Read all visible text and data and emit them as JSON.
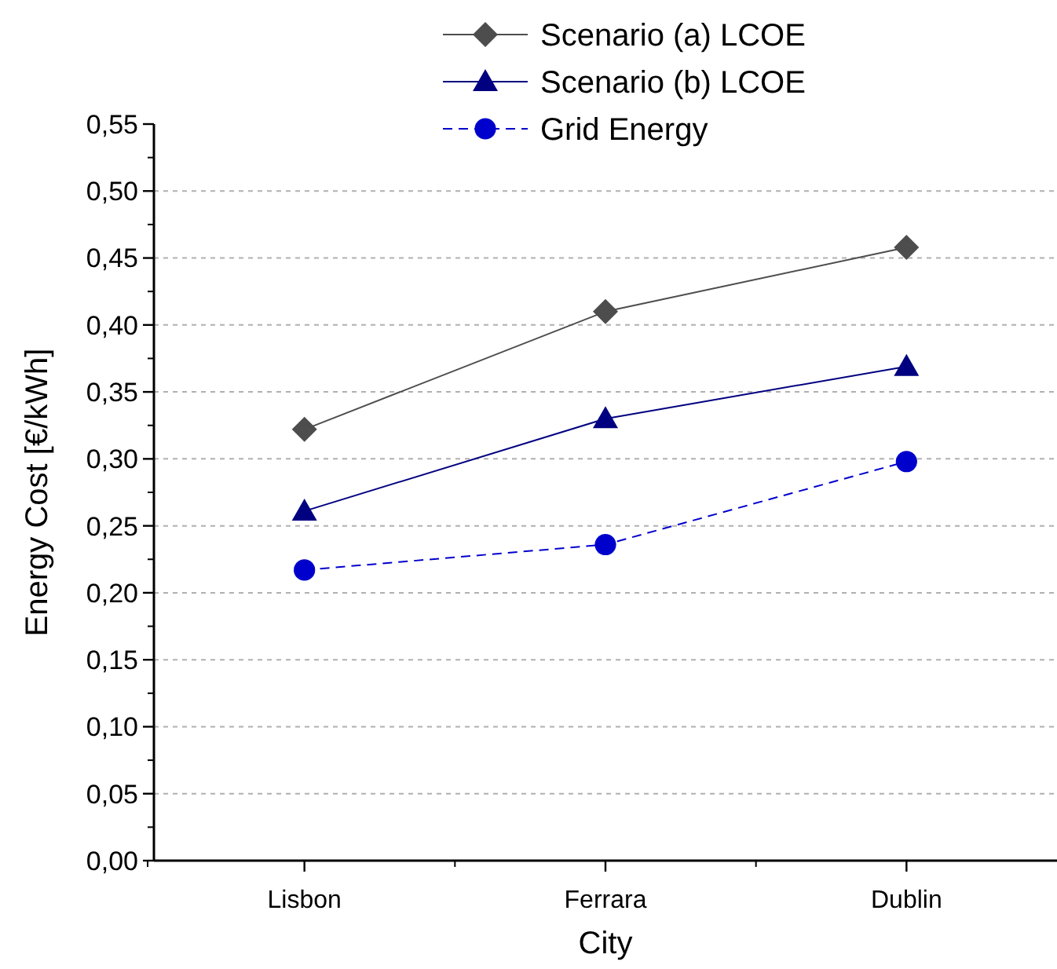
{
  "chart_data": {
    "type": "line",
    "xlabel": "City",
    "ylabel": "Energy Cost [€/kWh]",
    "categories": [
      "Lisbon",
      "Ferrara",
      "Dublin"
    ],
    "series": [
      {
        "name": "Scenario (a) LCOE",
        "color": "#4d4d4d",
        "values": [
          0.322,
          0.41,
          0.458
        ],
        "marker": "diamond",
        "line_style": "solid"
      },
      {
        "name": "Scenario (b) LCOE",
        "color": "#000080",
        "values": [
          0.261,
          0.33,
          0.369
        ],
        "marker": "triangle",
        "line_style": "solid"
      },
      {
        "name": "Grid Energy",
        "color": "#0000cc",
        "values": [
          0.217,
          0.236,
          0.298
        ],
        "marker": "circle",
        "line_style": "dashed"
      }
    ],
    "ylim": [
      0,
      0.55
    ],
    "yticks": [
      {
        "value": 0,
        "label": "0,00"
      },
      {
        "value": 0.05,
        "label": "0,05"
      },
      {
        "value": 0.1,
        "label": "0,10"
      },
      {
        "value": 0.15,
        "label": "0,15"
      },
      {
        "value": 0.2,
        "label": "0,20"
      },
      {
        "value": 0.25,
        "label": "0,25"
      },
      {
        "value": 0.3,
        "label": "0,30"
      },
      {
        "value": 0.35,
        "label": "0,35"
      },
      {
        "value": 0.4,
        "label": "0,40"
      },
      {
        "value": 0.45,
        "label": "0,45"
      },
      {
        "value": 0.5,
        "label": "0,50"
      },
      {
        "value": 0.55,
        "label": "0,55"
      }
    ],
    "grid": "y",
    "legend": "top"
  }
}
